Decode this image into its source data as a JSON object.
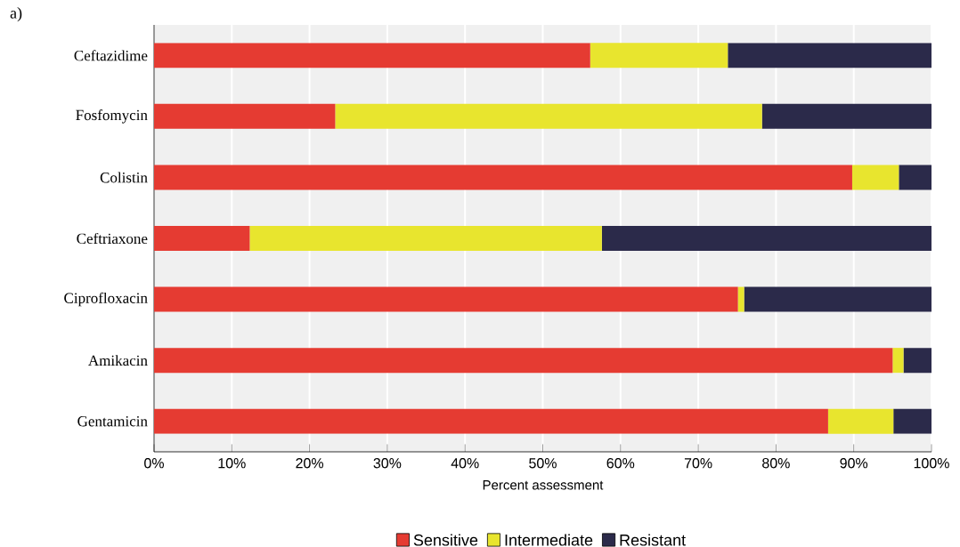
{
  "chart_data": {
    "type": "bar",
    "orientation": "horizontal",
    "stacked": true,
    "categories": [
      "Ceftazidime",
      "Fosfomycin",
      "Colistin",
      "Ceftriaxone",
      "Ciprofloxacin",
      "Amikacin",
      "Gentamicin"
    ],
    "series": [
      {
        "name": "Sensitive",
        "color": "#e53b32",
        "values": [
          56.1,
          23.3,
          89.8,
          12.3,
          75.1,
          95.0,
          86.7
        ]
      },
      {
        "name": "Intermediate",
        "color": "#e8e52e",
        "values": [
          17.7,
          54.9,
          6.0,
          45.3,
          0.8,
          1.4,
          8.4
        ]
      },
      {
        "name": "Resistant",
        "color": "#2b2a4a",
        "values": [
          26.2,
          21.8,
          4.2,
          42.4,
          24.1,
          3.6,
          4.9
        ]
      }
    ],
    "xlim": [
      0,
      100
    ],
    "xticks": [
      {
        "value": 0,
        "label": "0%"
      },
      {
        "value": 10,
        "label": "10%"
      },
      {
        "value": 20,
        "label": "20%"
      },
      {
        "value": 30,
        "label": "30%"
      },
      {
        "value": 40,
        "label": "40%"
      },
      {
        "value": 50,
        "label": "50%"
      },
      {
        "value": 60,
        "label": "60%"
      },
      {
        "value": 70,
        "label": "70%"
      },
      {
        "value": 80,
        "label": "80%"
      },
      {
        "value": 90,
        "label": "90%"
      },
      {
        "value": 100,
        "label": "100%"
      }
    ],
    "xlabel": "Percent assessment",
    "grid": "x",
    "legend": "bottom",
    "annotations": [
      "a)"
    ]
  }
}
